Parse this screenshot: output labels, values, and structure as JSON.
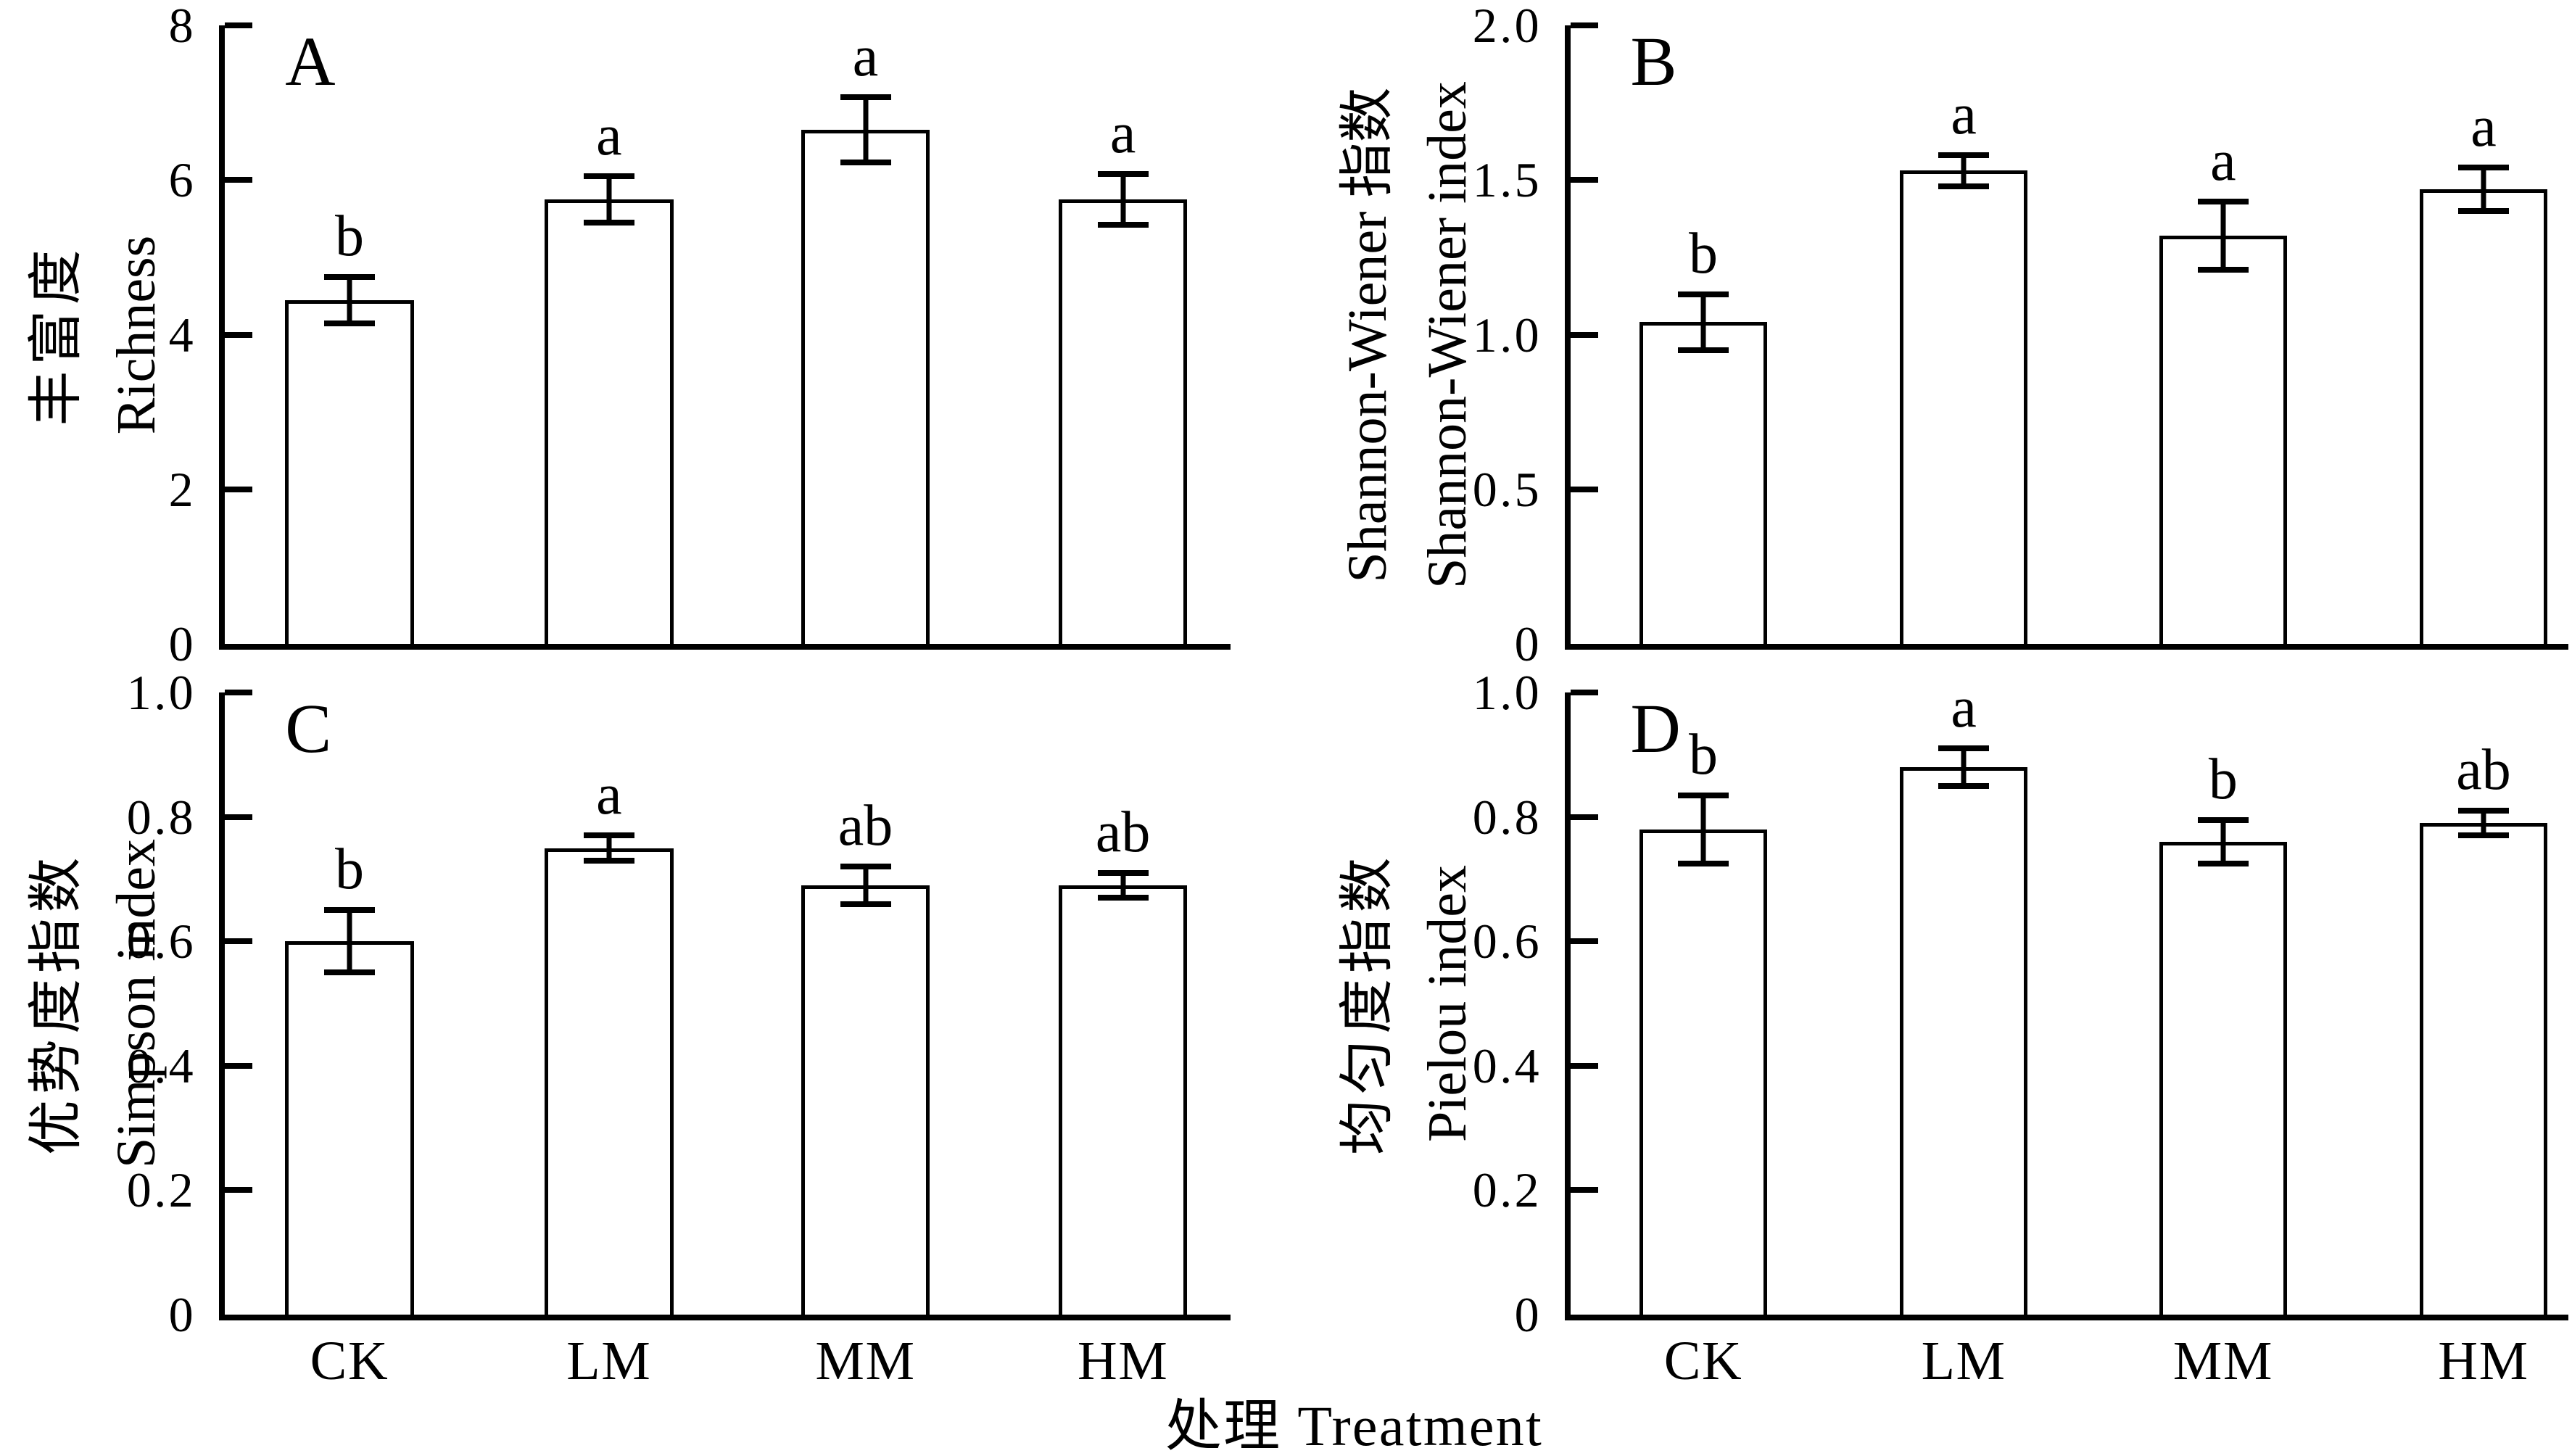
{
  "figure": {
    "xlabel": "处理 Treatment",
    "background_color": "#ffffff",
    "ink_color": "#000000"
  },
  "chart_data": [
    {
      "type": "bar",
      "panel_label": "A",
      "ylabel_lines": [
        "丰富度",
        "Richness"
      ],
      "categories": [
        "CK",
        "LM",
        "MM",
        "HM"
      ],
      "values": [
        4.45,
        5.75,
        6.65,
        5.75
      ],
      "errors": [
        0.3,
        0.3,
        0.42,
        0.33
      ],
      "sig_letters": [
        "b",
        "a",
        "a",
        "a"
      ],
      "ylim": [
        0,
        8
      ],
      "yticks": [
        0,
        2,
        4,
        6,
        8
      ],
      "ytick_labels": [
        "0",
        "2",
        "4",
        "6",
        "8"
      ],
      "show_xtick_labels": false,
      "grid": false
    },
    {
      "type": "bar",
      "panel_label": "B",
      "ylabel_lines": [
        "Shannon-Wiener 指数",
        "Shannon-Wiener index"
      ],
      "categories": [
        "CK",
        "LM",
        "MM",
        "HM"
      ],
      "values": [
        1.04,
        1.53,
        1.32,
        1.47
      ],
      "errors": [
        0.09,
        0.05,
        0.11,
        0.07
      ],
      "sig_letters": [
        "b",
        "a",
        "a",
        "a"
      ],
      "ylim": [
        0,
        2
      ],
      "yticks": [
        0,
        0.5,
        1,
        1.5,
        2
      ],
      "ytick_labels": [
        "0",
        "0.5",
        "1.0",
        "1.5",
        "2.0"
      ],
      "show_xtick_labels": false,
      "grid": false
    },
    {
      "type": "bar",
      "panel_label": "C",
      "ylabel_lines": [
        "优势度指数",
        "Simpson index"
      ],
      "categories": [
        "CK",
        "LM",
        "MM",
        "HM"
      ],
      "values": [
        0.6,
        0.75,
        0.69,
        0.69
      ],
      "errors": [
        0.05,
        0.02,
        0.03,
        0.02
      ],
      "sig_letters": [
        "b",
        "a",
        "ab",
        "ab"
      ],
      "ylim": [
        0,
        1
      ],
      "yticks": [
        0,
        0.2,
        0.4,
        0.6,
        0.8,
        1
      ],
      "ytick_labels": [
        "0",
        "0.2",
        "0.4",
        "0.6",
        "0.8",
        "1.0"
      ],
      "show_xtick_labels": true,
      "grid": false
    },
    {
      "type": "bar",
      "panel_label": "D",
      "ylabel_lines": [
        "均匀度指数",
        "Pielou index"
      ],
      "categories": [
        "CK",
        "LM",
        "MM",
        "HM"
      ],
      "values": [
        0.78,
        0.88,
        0.76,
        0.79
      ],
      "errors": [
        0.055,
        0.03,
        0.035,
        0.02
      ],
      "sig_letters": [
        "b",
        "a",
        "b",
        "ab"
      ],
      "ylim": [
        0,
        1
      ],
      "yticks": [
        0,
        0.2,
        0.4,
        0.6,
        0.8,
        1
      ],
      "ytick_labels": [
        "0",
        "0.2",
        "0.4",
        "0.6",
        "0.8",
        "1.0"
      ],
      "show_xtick_labels": true,
      "grid": false
    }
  ]
}
